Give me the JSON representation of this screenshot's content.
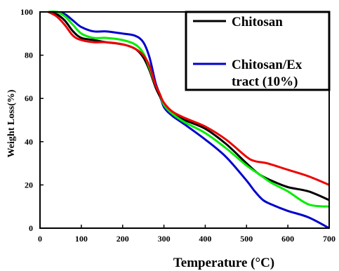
{
  "chart_data": {
    "type": "line",
    "xlabel": "Temperature (°C)",
    "ylabel": "Weight Loss(%)",
    "xlim": [
      0,
      700
    ],
    "ylim": [
      0,
      100
    ],
    "xticks": [
      0,
      100,
      200,
      300,
      400,
      500,
      600,
      700
    ],
    "yticks": [
      0,
      20,
      40,
      60,
      80,
      100
    ],
    "grid": false,
    "legend_position": "top-right",
    "legend_entries": [
      {
        "label": "Chitosan",
        "color": "#000000"
      },
      {
        "label_lines": [
          "Chitosan/Ex",
          "tract (10%)"
        ],
        "color": "#0000cc"
      }
    ],
    "series": [
      {
        "color": "#000000",
        "x": [
          20,
          40,
          60,
          80,
          100,
          130,
          160,
          200,
          230,
          250,
          265,
          280,
          290,
          300,
          320,
          350,
          400,
          450,
          500,
          530,
          560,
          600,
          650,
          700
        ],
        "y": [
          100,
          99,
          96,
          91,
          88,
          87,
          86,
          85,
          83,
          79,
          73,
          65,
          61,
          57,
          53,
          50,
          46,
          39,
          30,
          25,
          22,
          19,
          17,
          13
        ]
      },
      {
        "color": "#0000cc",
        "x": [
          20,
          40,
          60,
          80,
          100,
          130,
          160,
          200,
          230,
          250,
          265,
          280,
          290,
          300,
          320,
          350,
          400,
          450,
          500,
          520,
          540,
          560,
          600,
          650,
          700
        ],
        "y": [
          100,
          100,
          99,
          96,
          93,
          91,
          91,
          90,
          89,
          86,
          79,
          67,
          62,
          56,
          52,
          48,
          41,
          33,
          22,
          17,
          13,
          11,
          8,
          5,
          0
        ]
      },
      {
        "color": "#00ee00",
        "x": [
          20,
          40,
          60,
          80,
          100,
          130,
          160,
          200,
          230,
          250,
          265,
          280,
          290,
          300,
          320,
          350,
          400,
          450,
          500,
          530,
          560,
          600,
          650,
          700
        ],
        "y": [
          100,
          100,
          98,
          94,
          90,
          88,
          88,
          87,
          85,
          81,
          74,
          66,
          62,
          57,
          53,
          49,
          44,
          37,
          29,
          25,
          21,
          17,
          11,
          10
        ]
      },
      {
        "color": "#ee0000",
        "x": [
          20,
          40,
          60,
          80,
          100,
          130,
          160,
          200,
          230,
          250,
          265,
          280,
          290,
          300,
          320,
          350,
          400,
          450,
          500,
          520,
          550,
          600,
          650,
          700
        ],
        "y": [
          100,
          98,
          94,
          89,
          87,
          86,
          86,
          85,
          83,
          80,
          75,
          66,
          62,
          58,
          54,
          51,
          47,
          41,
          33,
          31,
          30,
          27,
          24,
          20
        ]
      }
    ]
  }
}
